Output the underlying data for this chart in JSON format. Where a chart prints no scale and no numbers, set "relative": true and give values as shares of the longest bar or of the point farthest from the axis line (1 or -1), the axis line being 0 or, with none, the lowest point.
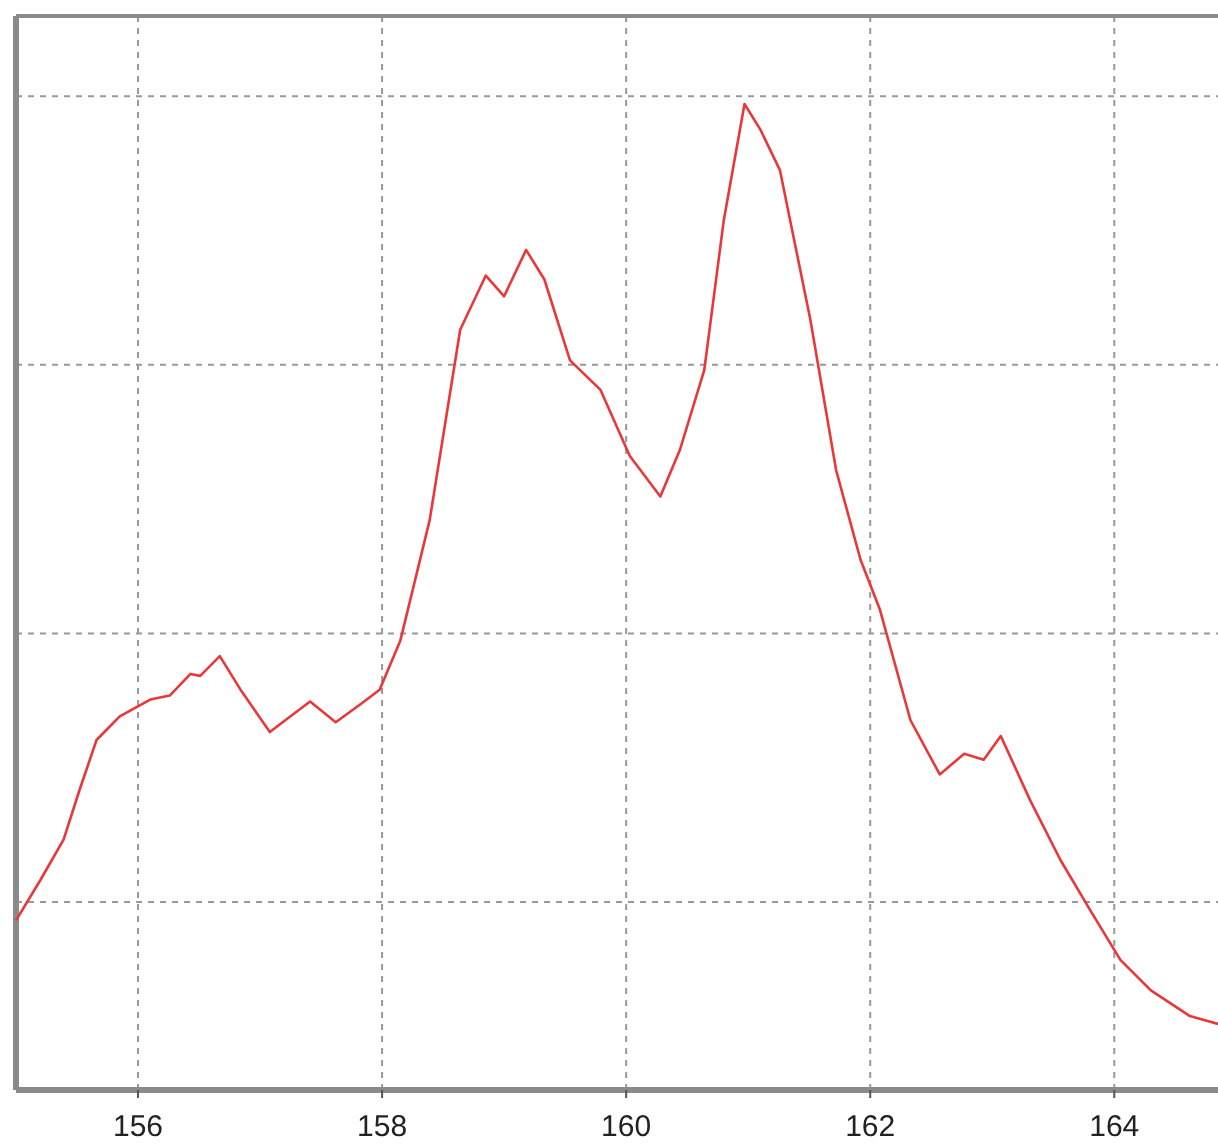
{
  "chart_data": {
    "type": "line",
    "relative": true,
    "xlim": [
      155,
      164.85
    ],
    "xticks": [
      156,
      158,
      160,
      162,
      164
    ],
    "grid": true,
    "tick_labels": "x",
    "line_style": "solid",
    "x": [
      155.0,
      155.2,
      155.39,
      155.52,
      155.66,
      155.85,
      156.1,
      156.26,
      156.43,
      156.51,
      156.67,
      156.84,
      157.08,
      157.25,
      157.41,
      157.62,
      157.82,
      157.98,
      158.15,
      158.39,
      158.64,
      158.85,
      159.0,
      159.18,
      159.33,
      159.54,
      159.79,
      160.03,
      160.28,
      160.44,
      160.64,
      160.8,
      160.97,
      161.1,
      161.26,
      161.51,
      161.72,
      161.92,
      162.08,
      162.33,
      162.57,
      162.77,
      162.93,
      163.07,
      163.31,
      163.56,
      163.8,
      164.05,
      164.3,
      164.62,
      164.85
    ],
    "series": [
      {
        "color": "#e8383a",
        "values": [
          0.172,
          0.213,
          0.254,
          0.304,
          0.355,
          0.379,
          0.396,
          0.4,
          0.422,
          0.42,
          0.44,
          0.406,
          0.363,
          0.379,
          0.394,
          0.373,
          0.391,
          0.406,
          0.456,
          0.578,
          0.771,
          0.826,
          0.805,
          0.852,
          0.822,
          0.74,
          0.71,
          0.643,
          0.602,
          0.649,
          0.73,
          0.882,
          1.0,
          0.974,
          0.933,
          0.781,
          0.629,
          0.538,
          0.487,
          0.375,
          0.32,
          0.341,
          0.335,
          0.359,
          0.294,
          0.233,
          0.183,
          0.132,
          0.101,
          0.075,
          0.067
        ]
      }
    ]
  }
}
